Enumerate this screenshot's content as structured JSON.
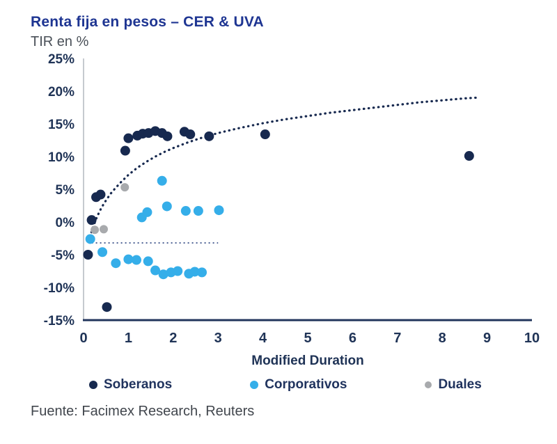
{
  "header": {
    "title": "Renta fija en pesos – CER & UVA",
    "subtitle": "TIR en %"
  },
  "footer": {
    "source": "Fuente: Facimex Research, Reuters"
  },
  "colors": {
    "title": "#1E3592",
    "subtitle": "#4A5058",
    "tick": "#1F3356",
    "axis_bottom": "#22355C",
    "axis_left": "#9FA6AF",
    "footer_text": "#41464D",
    "legend_text": "#20335E",
    "soberanos": "#17294F",
    "corporativos": "#35AEE9",
    "duales": "#A8AAAD",
    "trend": "#17294F",
    "refline": "#44598F"
  },
  "legend": [
    {
      "label": "Soberanos",
      "color": "#17294F"
    },
    {
      "label": "Corporativos",
      "color": "#35AEE9"
    },
    {
      "label": "Duales",
      "color": "#A8AAAD"
    }
  ],
  "chart_data": {
    "type": "scatter",
    "title": "Renta fija en pesos – CER & UVA",
    "xlabel": "Modified Duration",
    "ylabel": "TIR en %",
    "xlim": [
      0,
      10
    ],
    "ylim": [
      -15,
      25
    ],
    "x_ticks": [
      0,
      1,
      2,
      3,
      4,
      5,
      6,
      7,
      8,
      9,
      10
    ],
    "y_ticks": [
      "25%",
      "20%",
      "15%",
      "10%",
      "5%",
      "0%",
      "-5%",
      "-10%",
      "-15%"
    ],
    "grid": false,
    "legend_position": "bottom",
    "series": [
      {
        "name": "Soberanos",
        "color": "#17294F",
        "radius": 7,
        "points": [
          [
            0.1,
            -5.0
          ],
          [
            0.18,
            0.3
          ],
          [
            0.28,
            3.8
          ],
          [
            0.38,
            4.2
          ],
          [
            0.52,
            -13.0
          ],
          [
            0.93,
            10.9
          ],
          [
            1.0,
            12.8
          ],
          [
            1.2,
            13.2
          ],
          [
            1.32,
            13.5
          ],
          [
            1.45,
            13.6
          ],
          [
            1.6,
            13.9
          ],
          [
            1.75,
            13.6
          ],
          [
            1.87,
            13.1
          ],
          [
            2.25,
            13.8
          ],
          [
            2.38,
            13.4
          ],
          [
            2.8,
            13.1
          ],
          [
            4.05,
            13.4
          ],
          [
            8.6,
            10.1
          ]
        ]
      },
      {
        "name": "Corporativos",
        "color": "#35AEE9",
        "radius": 7,
        "points": [
          [
            0.15,
            -2.6
          ],
          [
            0.42,
            -4.6
          ],
          [
            0.72,
            -6.3
          ],
          [
            1.0,
            -5.7
          ],
          [
            1.18,
            -5.8
          ],
          [
            1.3,
            0.7
          ],
          [
            1.42,
            1.5
          ],
          [
            1.44,
            -6.0
          ],
          [
            1.6,
            -7.4
          ],
          [
            1.75,
            6.3
          ],
          [
            1.78,
            -8.0
          ],
          [
            1.86,
            2.4
          ],
          [
            1.95,
            -7.7
          ],
          [
            2.1,
            -7.5
          ],
          [
            2.28,
            1.7
          ],
          [
            2.35,
            -7.9
          ],
          [
            2.48,
            -7.6
          ],
          [
            2.56,
            1.7
          ],
          [
            2.64,
            -7.7
          ],
          [
            3.02,
            1.8
          ]
        ]
      },
      {
        "name": "Duales",
        "color": "#A8AAAD",
        "radius": 6,
        "points": [
          [
            0.25,
            -1.2
          ],
          [
            0.45,
            -1.1
          ],
          [
            0.92,
            5.3
          ]
        ]
      }
    ],
    "trendline": {
      "style": "dotted",
      "color": "#17294F",
      "points": [
        [
          0.12,
          -3.0
        ],
        [
          0.2,
          -1.0
        ],
        [
          0.3,
          0.8
        ],
        [
          0.4,
          2.2
        ],
        [
          0.5,
          3.3
        ],
        [
          0.6,
          4.3
        ],
        [
          0.7,
          5.1
        ],
        [
          0.85,
          6.2
        ],
        [
          1.0,
          7.2
        ],
        [
          1.2,
          8.3
        ],
        [
          1.4,
          9.2
        ],
        [
          1.6,
          10.0
        ],
        [
          1.8,
          10.7
        ],
        [
          2.0,
          11.3
        ],
        [
          2.3,
          12.1
        ],
        [
          2.6,
          12.8
        ],
        [
          3.0,
          13.6
        ],
        [
          3.5,
          14.4
        ],
        [
          4.0,
          15.1
        ],
        [
          4.5,
          15.7
        ],
        [
          5.0,
          16.2
        ],
        [
          5.5,
          16.7
        ],
        [
          6.0,
          17.1
        ],
        [
          6.5,
          17.5
        ],
        [
          7.0,
          17.9
        ],
        [
          7.5,
          18.3
        ],
        [
          8.0,
          18.6
        ],
        [
          8.5,
          18.9
        ],
        [
          8.75,
          19.0
        ]
      ]
    },
    "refline": {
      "style": "dotted",
      "color": "#44598F",
      "y": -3.2,
      "x0": 0.18,
      "x1": 3.0
    }
  }
}
